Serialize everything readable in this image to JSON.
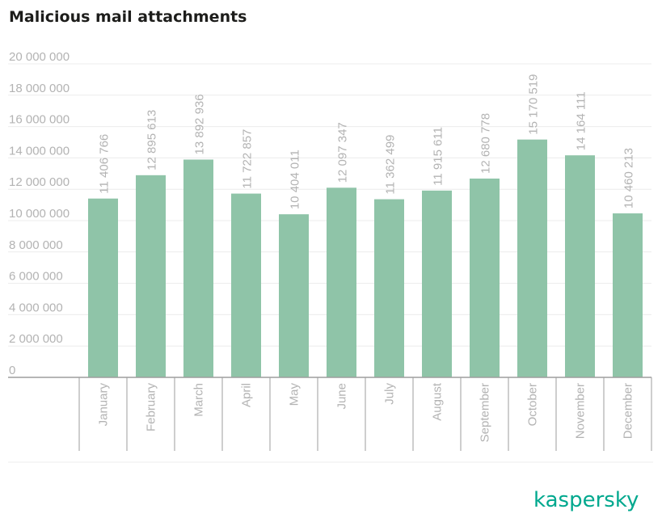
{
  "title": "Malicious mail attachments",
  "brand": "kaspersky",
  "colors": {
    "bar": "#8fc4a8",
    "tick_text": "#b3b3b3",
    "grid": "#ececec",
    "axis": "#9e9e9e",
    "brand": "#00a88e",
    "title": "#1d1d1b"
  },
  "chart_data": {
    "type": "bar",
    "title": "Malicious mail attachments",
    "xlabel": "",
    "ylabel": "",
    "ylim": [
      0,
      20000000
    ],
    "grid": true,
    "y_ticks": [
      {
        "value": 0,
        "label": "0"
      },
      {
        "value": 2000000,
        "label": "2 000 000"
      },
      {
        "value": 4000000,
        "label": "4 000 000"
      },
      {
        "value": 6000000,
        "label": "6 000 000"
      },
      {
        "value": 8000000,
        "label": "8 000 000"
      },
      {
        "value": 10000000,
        "label": "10 000 000"
      },
      {
        "value": 12000000,
        "label": "12 000 000"
      },
      {
        "value": 14000000,
        "label": "14 000 000"
      },
      {
        "value": 16000000,
        "label": "16 000 000"
      },
      {
        "value": 18000000,
        "label": "18 000 000"
      },
      {
        "value": 20000000,
        "label": "20 000 000"
      }
    ],
    "categories": [
      "January",
      "February",
      "March",
      "April",
      "May",
      "June",
      "July",
      "August",
      "September",
      "October",
      "November",
      "December"
    ],
    "values": [
      11406766,
      12895613,
      13892936,
      11722857,
      10404011,
      12097347,
      11362499,
      11915611,
      12680778,
      15170519,
      14164111,
      10460213
    ],
    "value_labels": [
      "11 406 766",
      "12 895 613",
      "13 892 936",
      "11 722 857",
      "10 404 011",
      "12 097 347",
      "11 362 499",
      "11 915 611",
      "12 680 778",
      "15 170 519",
      "14 164 111",
      "10 460 213"
    ]
  }
}
